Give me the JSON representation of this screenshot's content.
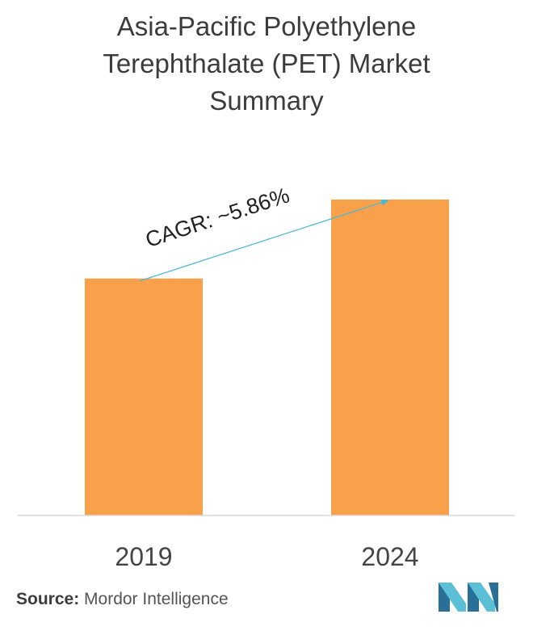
{
  "title_lines": [
    "Asia-Pacific Polyethylene",
    "Terephthalate (PET) Market",
    "Summary"
  ],
  "chart_data": {
    "type": "bar",
    "categories": [
      "2019",
      "2024"
    ],
    "values": [
      0.75,
      1.0
    ],
    "ylim": [
      0,
      1.12
    ],
    "grid": false,
    "annotation": "CAGR: ~5.86%",
    "bar_color": "#f9a04a"
  },
  "footer": {
    "source_label": "Source:",
    "source_name": "Mordor Intelligence"
  },
  "colors": {
    "arrow": "#4eb7d3",
    "axis": "#d9d9d9",
    "logo_dark": "#2a6f97",
    "logo_light": "#5bc0d6"
  }
}
